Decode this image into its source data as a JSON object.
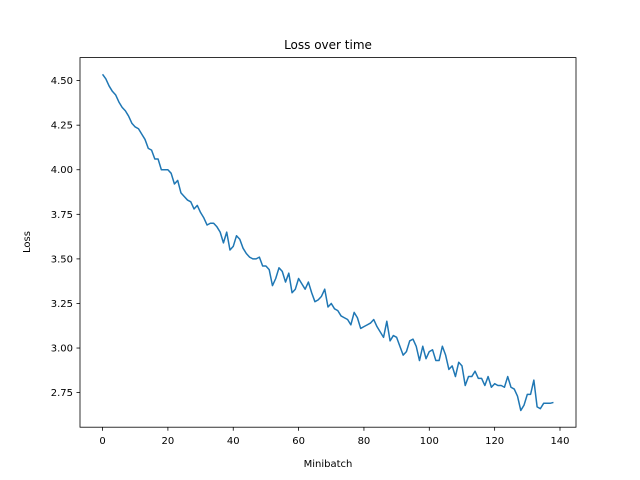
{
  "chart_data": {
    "type": "line",
    "title": "Loss over time",
    "xlabel": "Minibatch",
    "ylabel": "Loss",
    "x": [
      0,
      1,
      2,
      3,
      4,
      5,
      6,
      7,
      8,
      9,
      10,
      11,
      12,
      13,
      14,
      15,
      16,
      17,
      18,
      19,
      20,
      21,
      22,
      23,
      24,
      25,
      26,
      27,
      28,
      29,
      30,
      31,
      32,
      33,
      34,
      35,
      36,
      37,
      38,
      39,
      40,
      41,
      42,
      43,
      44,
      45,
      46,
      47,
      48,
      49,
      50,
      51,
      52,
      53,
      54,
      55,
      56,
      57,
      58,
      59,
      60,
      61,
      62,
      63,
      64,
      65,
      66,
      67,
      68,
      69,
      70,
      71,
      72,
      73,
      74,
      75,
      76,
      77,
      78,
      79,
      80,
      81,
      82,
      83,
      84,
      85,
      86,
      87,
      88,
      89,
      90,
      91,
      92,
      93,
      94,
      95,
      96,
      97,
      98,
      99,
      100,
      101,
      102,
      103,
      104,
      105,
      106,
      107,
      108,
      109,
      110,
      111,
      112,
      113,
      114,
      115,
      116,
      117,
      118,
      119,
      120,
      121,
      122,
      123,
      124,
      125,
      126,
      127,
      128,
      129,
      130,
      131,
      132,
      133,
      134,
      135,
      136,
      137,
      138
    ],
    "series": [
      {
        "name": "Loss",
        "color": "#1f77b4",
        "values": [
          4.535,
          4.51,
          4.47,
          4.44,
          4.42,
          4.38,
          4.35,
          4.33,
          4.3,
          4.26,
          4.24,
          4.23,
          4.2,
          4.17,
          4.12,
          4.11,
          4.06,
          4.06,
          4.0,
          4.0,
          4.0,
          3.98,
          3.92,
          3.94,
          3.87,
          3.85,
          3.83,
          3.82,
          3.78,
          3.8,
          3.76,
          3.73,
          3.69,
          3.7,
          3.7,
          3.68,
          3.65,
          3.59,
          3.65,
          3.55,
          3.57,
          3.63,
          3.61,
          3.56,
          3.53,
          3.51,
          3.5,
          3.5,
          3.51,
          3.46,
          3.46,
          3.44,
          3.35,
          3.39,
          3.45,
          3.43,
          3.37,
          3.42,
          3.31,
          3.33,
          3.39,
          3.36,
          3.33,
          3.37,
          3.31,
          3.26,
          3.27,
          3.29,
          3.33,
          3.23,
          3.25,
          3.22,
          3.21,
          3.18,
          3.17,
          3.16,
          3.13,
          3.2,
          3.17,
          3.11,
          3.12,
          3.13,
          3.14,
          3.16,
          3.12,
          3.09,
          3.06,
          3.15,
          3.04,
          3.07,
          3.06,
          3.01,
          2.96,
          2.98,
          3.04,
          3.05,
          3.01,
          2.93,
          3.01,
          2.94,
          2.98,
          2.99,
          2.93,
          2.93,
          3.01,
          2.96,
          2.88,
          2.9,
          2.84,
          2.92,
          2.9,
          2.79,
          2.84,
          2.84,
          2.87,
          2.83,
          2.83,
          2.79,
          2.84,
          2.78,
          2.8,
          2.79,
          2.79,
          2.78,
          2.84,
          2.78,
          2.77,
          2.73,
          2.65,
          2.68,
          2.74,
          2.74,
          2.82,
          2.67,
          2.66,
          2.69,
          2.69,
          2.69,
          2.695
        ]
      }
    ],
    "xlim": [
      -6.9,
      144.9
    ],
    "ylim": [
      2.556,
      4.629
    ],
    "xticks": [
      0,
      20,
      40,
      60,
      80,
      100,
      120,
      140
    ],
    "yticks": [
      2.75,
      {
        "value": 3,
        "label": "3.00"
      },
      3.25,
      {
        "value": 3.5,
        "label": "3.50"
      },
      3.75,
      {
        "value": 4,
        "label": "4.00"
      },
      4.25,
      {
        "value": 4.5,
        "label": "4.50"
      }
    ]
  }
}
